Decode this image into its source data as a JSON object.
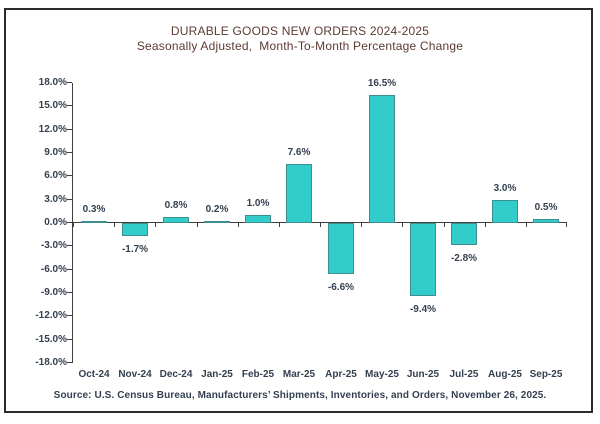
{
  "window": {
    "background": "#FFFFFF",
    "frame_border_color": "#2B2B2B"
  },
  "chart_data": {
    "type": "bar",
    "title": "DURABLE GOODS NEW ORDERS 2024-2025",
    "subtitle": "Seasonally Adjusted,  Month-To-Month Percentage Change",
    "categories": [
      "Oct-24",
      "Nov-24",
      "Dec-24",
      "Jan-25",
      "Feb-25",
      "Mar-25",
      "Apr-25",
      "May-25",
      "Jun-25",
      "Jul-25",
      "Aug-25",
      "Sep-25"
    ],
    "values": [
      0.3,
      -1.7,
      0.8,
      0.2,
      1.0,
      7.6,
      -6.6,
      16.5,
      -9.4,
      -2.8,
      3.0,
      0.5
    ],
    "data_labels": [
      "0.3%",
      "-1.7%",
      "0.8%",
      "0.2%",
      "1.0%",
      "7.6%",
      "-6.6%",
      "16.5%",
      "-9.4%",
      "-2.8%",
      "3.0%",
      "0.5%"
    ],
    "xlabel": "",
    "ylabel": "",
    "ylim": [
      -18,
      18
    ],
    "ytick_step": 3,
    "ytick_labels": [
      "18.0%",
      "15.0%",
      "12.0%",
      "9.0%",
      "6.0%",
      "3.0%",
      "0.0%",
      "-3.0%",
      "-6.0%",
      "-9.0%",
      "-12.0%",
      "-15.0%",
      "-18.0%"
    ],
    "grid": false,
    "legend": false,
    "colors": {
      "bar_fill": "#32CCCA",
      "bar_border": "#3D8F8F",
      "axis": "#404040",
      "labels": "#333F50",
      "title": "#5E3A32"
    },
    "source": "Source: U.S. Census Bureau, Manufacturers’ Shipments, Inventories, and Orders, November 26, 2025."
  }
}
